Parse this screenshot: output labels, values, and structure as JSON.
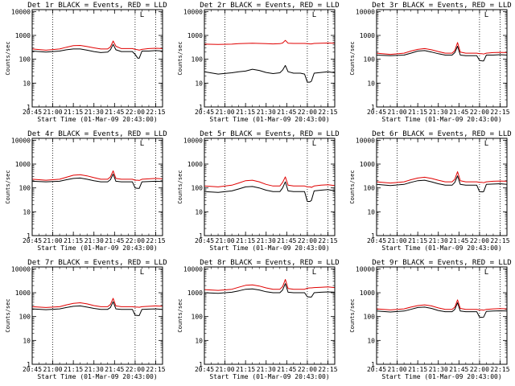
{
  "figure": {
    "xlabel": "Start Time (01-Mar-09 20:43:00)",
    "ylabel": "Counts/sec",
    "x_tick_labels": [
      "20:45",
      "21:00",
      "21:15",
      "21:30",
      "21:45",
      "22:00",
      "22:15"
    ],
    "y_tick_labels": [
      "1",
      "10",
      "100",
      "1000",
      "10000"
    ],
    "marker_label": "L"
  },
  "chart_data": [
    {
      "type": "line",
      "title": "Det 1r BLACK = Events, RED = LLD",
      "xlabel": "Start Time (01-Mar-09 20:43:00)",
      "ylabel": "Counts/sec",
      "ylim": [
        1,
        12000
      ],
      "yscale": "log",
      "xlim": [
        "20:45",
        "22:20"
      ],
      "grid": false,
      "vlines": [
        "21:00",
        "22:00",
        "22:15"
      ],
      "marker": {
        "x": "22:05",
        "label": "L"
      },
      "x": [
        "20:45",
        "20:55",
        "21:05",
        "21:10",
        "21:15",
        "21:20",
        "21:25",
        "21:30",
        "21:35",
        "21:40",
        "21:42",
        "21:44",
        "21:46",
        "21:50",
        "21:55",
        "21:58",
        "22:00",
        "22:02",
        "22:03",
        "22:05",
        "22:10",
        "22:15",
        "22:20"
      ],
      "series": [
        {
          "name": "BLACK = Events",
          "color": "#000000",
          "values": [
            220,
            200,
            220,
            250,
            270,
            270,
            240,
            210,
            190,
            200,
            250,
            420,
            250,
            210,
            210,
            210,
            160,
            110,
            110,
            220,
            220,
            230,
            220
          ]
        },
        {
          "name": "RED = LLD",
          "color": "#e00000",
          "values": [
            270,
            240,
            270,
            320,
            370,
            380,
            340,
            300,
            270,
            270,
            330,
            580,
            350,
            280,
            280,
            280,
            260,
            250,
            240,
            260,
            280,
            290,
            280
          ]
        }
      ]
    },
    {
      "type": "line",
      "title": "Det 2r BLACK = Events, RED = LLD",
      "xlabel": "Start Time (01-Mar-09 20:43:00)",
      "ylabel": "Counts/sec",
      "ylim": [
        1,
        12000
      ],
      "yscale": "log",
      "xlim": [
        "20:45",
        "22:20"
      ],
      "grid": false,
      "vlines": [
        "21:00",
        "22:00",
        "22:15"
      ],
      "marker": {
        "x": "22:05",
        "label": "L"
      },
      "x": [
        "20:45",
        "20:55",
        "21:05",
        "21:10",
        "21:15",
        "21:20",
        "21:25",
        "21:30",
        "21:35",
        "21:40",
        "21:42",
        "21:44",
        "21:46",
        "21:50",
        "21:55",
        "21:58",
        "22:00",
        "22:02",
        "22:03",
        "22:05",
        "22:10",
        "22:15",
        "22:20"
      ],
      "series": [
        {
          "name": "BLACK = Events",
          "color": "#000000",
          "values": [
            30,
            24,
            27,
            30,
            32,
            38,
            34,
            28,
            25,
            27,
            35,
            55,
            30,
            26,
            26,
            24,
            11,
            11,
            12,
            26,
            28,
            30,
            27
          ]
        },
        {
          "name": "RED = LLD",
          "color": "#e00000",
          "values": [
            430,
            420,
            430,
            450,
            460,
            470,
            460,
            450,
            440,
            450,
            480,
            620,
            470,
            460,
            460,
            460,
            450,
            440,
            440,
            460,
            470,
            480,
            470
          ]
        }
      ]
    },
    {
      "type": "line",
      "title": "Det 3r BLACK = Events, RED = LLD",
      "xlabel": "Start Time (01-Mar-09 20:43:00)",
      "ylabel": "Counts/sec",
      "ylim": [
        1,
        12000
      ],
      "yscale": "log",
      "xlim": [
        "20:45",
        "22:20"
      ],
      "grid": false,
      "vlines": [
        "21:00",
        "22:00",
        "22:15"
      ],
      "marker": {
        "x": "22:05",
        "label": "L"
      },
      "x": [
        "20:45",
        "20:55",
        "21:05",
        "21:10",
        "21:15",
        "21:20",
        "21:25",
        "21:30",
        "21:35",
        "21:40",
        "21:42",
        "21:44",
        "21:46",
        "21:50",
        "21:55",
        "21:58",
        "22:00",
        "22:02",
        "22:03",
        "22:05",
        "22:10",
        "22:15",
        "22:20"
      ],
      "series": [
        {
          "name": "BLACK = Events",
          "color": "#000000",
          "values": [
            150,
            140,
            150,
            180,
            220,
            230,
            200,
            170,
            150,
            150,
            190,
            350,
            150,
            140,
            140,
            140,
            90,
            85,
            85,
            150,
            150,
            155,
            150
          ]
        },
        {
          "name": "RED = LLD",
          "color": "#e00000",
          "values": [
            180,
            160,
            180,
            220,
            260,
            280,
            250,
            210,
            180,
            180,
            230,
            500,
            200,
            180,
            180,
            180,
            170,
            170,
            165,
            180,
            190,
            195,
            190
          ]
        }
      ]
    },
    {
      "type": "line",
      "title": "Det 4r BLACK = Events, RED = LLD",
      "xlabel": "Start Time (01-Mar-09 20:43:00)",
      "ylabel": "Counts/sec",
      "ylim": [
        1,
        12000
      ],
      "yscale": "log",
      "xlim": [
        "20:45",
        "22:20"
      ],
      "grid": false,
      "vlines": [
        "21:00",
        "22:00",
        "22:15"
      ],
      "marker": {
        "x": "22:05",
        "label": "L"
      },
      "x": [
        "20:45",
        "20:55",
        "21:05",
        "21:10",
        "21:15",
        "21:20",
        "21:25",
        "21:30",
        "21:35",
        "21:40",
        "21:42",
        "21:44",
        "21:46",
        "21:50",
        "21:55",
        "21:58",
        "22:00",
        "22:02",
        "22:03",
        "22:05",
        "22:10",
        "22:15",
        "22:20"
      ],
      "series": [
        {
          "name": "BLACK = Events",
          "color": "#000000",
          "values": [
            190,
            180,
            190,
            220,
            250,
            260,
            230,
            200,
            180,
            180,
            220,
            380,
            190,
            180,
            180,
            180,
            100,
            95,
            95,
            180,
            185,
            190,
            185
          ]
        },
        {
          "name": "RED = LLD",
          "color": "#e00000",
          "values": [
            230,
            210,
            230,
            280,
            340,
            360,
            320,
            270,
            230,
            230,
            290,
            520,
            250,
            230,
            230,
            230,
            210,
            210,
            205,
            230,
            240,
            250,
            240
          ]
        }
      ]
    },
    {
      "type": "line",
      "title": "Det 5r BLACK = Events, RED = LLD",
      "xlabel": "Start Time (01-Mar-09 20:43:00)",
      "ylabel": "Counts/sec",
      "ylim": [
        1,
        12000
      ],
      "yscale": "log",
      "xlim": [
        "20:45",
        "22:20"
      ],
      "grid": false,
      "vlines": [
        "21:00",
        "22:00",
        "22:15"
      ],
      "marker": {
        "x": "22:05",
        "label": "L"
      },
      "x": [
        "20:45",
        "20:55",
        "21:05",
        "21:10",
        "21:15",
        "21:20",
        "21:25",
        "21:30",
        "21:35",
        "21:40",
        "21:42",
        "21:44",
        "21:46",
        "21:50",
        "21:55",
        "21:58",
        "22:00",
        "22:02",
        "22:03",
        "22:05",
        "22:10",
        "22:15",
        "22:20"
      ],
      "series": [
        {
          "name": "BLACK = Events",
          "color": "#000000",
          "values": [
            70,
            65,
            75,
            90,
            110,
            115,
            100,
            80,
            70,
            70,
            100,
            180,
            75,
            70,
            70,
            70,
            27,
            27,
            30,
            75,
            80,
            85,
            75
          ]
        },
        {
          "name": "RED = LLD",
          "color": "#e00000",
          "values": [
            120,
            110,
            130,
            160,
            200,
            210,
            180,
            140,
            120,
            120,
            170,
            290,
            130,
            120,
            120,
            120,
            110,
            110,
            105,
            120,
            130,
            135,
            125
          ]
        }
      ]
    },
    {
      "type": "line",
      "title": "Det 6r BLACK = Events, RED = LLD",
      "xlabel": "Start Time (01-Mar-09 20:43:00)",
      "ylabel": "Counts/sec",
      "ylim": [
        1,
        12000
      ],
      "yscale": "log",
      "xlim": [
        "20:45",
        "22:20"
      ],
      "grid": false,
      "vlines": [
        "21:00",
        "22:00",
        "22:15"
      ],
      "marker": {
        "x": "22:05",
        "label": "L"
      },
      "x": [
        "20:45",
        "20:55",
        "21:05",
        "21:10",
        "21:15",
        "21:20",
        "21:25",
        "21:30",
        "21:35",
        "21:40",
        "21:42",
        "21:44",
        "21:46",
        "21:50",
        "21:55",
        "21:58",
        "22:00",
        "22:02",
        "22:03",
        "22:05",
        "22:10",
        "22:15",
        "22:20"
      ],
      "series": [
        {
          "name": "BLACK = Events",
          "color": "#000000",
          "values": [
            140,
            125,
            140,
            170,
            200,
            210,
            180,
            150,
            130,
            130,
            170,
            320,
            140,
            130,
            130,
            130,
            70,
            68,
            70,
            140,
            145,
            150,
            140
          ]
        },
        {
          "name": "RED = LLD",
          "color": "#e00000",
          "values": [
            180,
            160,
            180,
            220,
            260,
            280,
            250,
            210,
            180,
            180,
            230,
            480,
            200,
            180,
            180,
            180,
            170,
            170,
            165,
            180,
            190,
            195,
            190
          ]
        }
      ]
    },
    {
      "type": "line",
      "title": "Det 7r BLACK = Events, RED = LLD",
      "xlabel": "Start Time (01-Mar-09 20:43:00)",
      "ylabel": "Counts/sec",
      "ylim": [
        1,
        12000
      ],
      "yscale": "log",
      "xlim": [
        "20:45",
        "22:20"
      ],
      "grid": false,
      "vlines": [
        "21:00",
        "22:00",
        "22:15"
      ],
      "marker": {
        "x": "22:05",
        "label": "L"
      },
      "x": [
        "20:45",
        "20:55",
        "21:05",
        "21:10",
        "21:15",
        "21:20",
        "21:25",
        "21:30",
        "21:35",
        "21:40",
        "21:42",
        "21:44",
        "21:46",
        "21:50",
        "21:55",
        "21:58",
        "22:00",
        "22:02",
        "22:03",
        "22:05",
        "22:10",
        "22:15",
        "22:20"
      ],
      "series": [
        {
          "name": "BLACK = Events",
          "color": "#000000",
          "values": [
            210,
            195,
            210,
            240,
            270,
            280,
            250,
            220,
            200,
            200,
            240,
            420,
            210,
            200,
            200,
            200,
            115,
            110,
            110,
            200,
            205,
            210,
            200
          ]
        },
        {
          "name": "RED = LLD",
          "color": "#e00000",
          "values": [
            260,
            240,
            260,
            310,
            360,
            380,
            340,
            290,
            260,
            260,
            320,
            580,
            280,
            260,
            260,
            260,
            250,
            250,
            245,
            260,
            270,
            280,
            270
          ]
        }
      ]
    },
    {
      "type": "line",
      "title": "Det 8r BLACK = Events, RED = LLD",
      "xlabel": "Start Time (01-Mar-09 20:43:00)",
      "ylabel": "Counts/sec",
      "ylim": [
        1,
        12000
      ],
      "yscale": "log",
      "xlim": [
        "20:45",
        "22:20"
      ],
      "grid": false,
      "vlines": [
        "21:00",
        "22:00",
        "22:15"
      ],
      "marker": {
        "x": "22:05",
        "label": "L"
      },
      "x": [
        "20:45",
        "20:55",
        "21:05",
        "21:10",
        "21:15",
        "21:20",
        "21:25",
        "21:30",
        "21:35",
        "21:40",
        "21:42",
        "21:44",
        "21:46",
        "21:50",
        "21:55",
        "21:58",
        "22:00",
        "22:02",
        "22:03",
        "22:05",
        "22:10",
        "22:15",
        "22:20"
      ],
      "series": [
        {
          "name": "BLACK = Events",
          "color": "#000000",
          "values": [
            1000,
            950,
            1050,
            1200,
            1400,
            1450,
            1300,
            1100,
            1000,
            1000,
            1300,
            2400,
            1050,
            1000,
            1000,
            1000,
            680,
            660,
            660,
            1000,
            1050,
            1080,
            1050
          ]
        },
        {
          "name": "RED = LLD",
          "color": "#e00000",
          "values": [
            1350,
            1250,
            1400,
            1700,
            2050,
            2150,
            1900,
            1600,
            1400,
            1400,
            1800,
            3600,
            1500,
            1400,
            1400,
            1400,
            1550,
            1600,
            1600,
            1650,
            1700,
            1750,
            1650
          ]
        }
      ]
    },
    {
      "type": "line",
      "title": "Det 9r BLACK = Events, RED = LLD",
      "xlabel": "Start Time (01-Mar-09 20:43:00)",
      "ylabel": "Counts/sec",
      "ylim": [
        1,
        12000
      ],
      "yscale": "log",
      "xlim": [
        "20:45",
        "22:20"
      ],
      "grid": false,
      "vlines": [
        "21:00",
        "22:00",
        "22:15"
      ],
      "marker": {
        "x": "22:05",
        "label": "L"
      },
      "x": [
        "20:45",
        "20:55",
        "21:05",
        "21:10",
        "21:15",
        "21:20",
        "21:25",
        "21:30",
        "21:35",
        "21:40",
        "21:42",
        "21:44",
        "21:46",
        "21:50",
        "21:55",
        "21:58",
        "22:00",
        "22:02",
        "22:03",
        "22:05",
        "22:10",
        "22:15",
        "22:20"
      ],
      "series": [
        {
          "name": "BLACK = Events",
          "color": "#000000",
          "values": [
            170,
            155,
            170,
            200,
            240,
            250,
            220,
            180,
            160,
            160,
            200,
            380,
            170,
            160,
            160,
            160,
            95,
            92,
            95,
            165,
            170,
            175,
            170
          ]
        },
        {
          "name": "RED = LLD",
          "color": "#e00000",
          "values": [
            210,
            190,
            210,
            250,
            290,
            310,
            280,
            230,
            200,
            200,
            250,
            500,
            220,
            200,
            200,
            200,
            190,
            190,
            185,
            200,
            210,
            215,
            210
          ]
        }
      ]
    }
  ]
}
